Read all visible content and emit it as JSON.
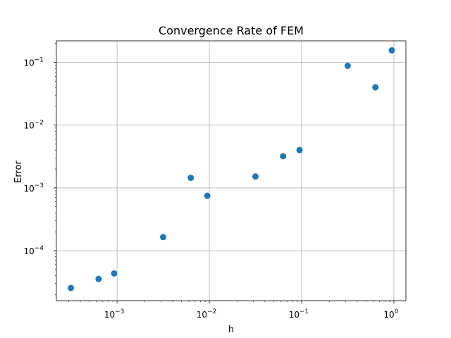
{
  "chart_data": {
    "type": "scatter",
    "title": "Convergence Rate of FEM",
    "xlabel": "h",
    "ylabel": "Error",
    "xscale": "log",
    "yscale": "log",
    "xlim": [
      0.00022,
      1.35
    ],
    "ylim": [
      1.6e-05,
      0.22
    ],
    "grid": true,
    "marker_color": "#1f77b4",
    "x_ticks": [
      {
        "value": 0.001,
        "base": "10",
        "exp": "−3"
      },
      {
        "value": 0.01,
        "base": "10",
        "exp": "−2"
      },
      {
        "value": 0.1,
        "base": "10",
        "exp": "−1"
      },
      {
        "value": 1,
        "base": "10",
        "exp": "0"
      }
    ],
    "y_ticks": [
      {
        "value": 0.0001,
        "base": "10",
        "exp": "−4"
      },
      {
        "value": 0.001,
        "base": "10",
        "exp": "−3"
      },
      {
        "value": 0.01,
        "base": "10",
        "exp": "−2"
      },
      {
        "value": 0.1,
        "base": "10",
        "exp": "−1"
      }
    ],
    "points": [
      {
        "x": 0.000316,
        "y": 2.55e-05
      },
      {
        "x": 0.000631,
        "y": 3.55e-05
      },
      {
        "x": 0.00093,
        "y": 4.35e-05
      },
      {
        "x": 0.00316,
        "y": 0.000165
      },
      {
        "x": 0.0063,
        "y": 0.00145
      },
      {
        "x": 0.0095,
        "y": 0.00075
      },
      {
        "x": 0.0316,
        "y": 0.00152
      },
      {
        "x": 0.063,
        "y": 0.0032
      },
      {
        "x": 0.095,
        "y": 0.004
      },
      {
        "x": 0.316,
        "y": 0.088
      },
      {
        "x": 0.631,
        "y": 0.04
      },
      {
        "x": 0.95,
        "y": 0.155
      }
    ]
  }
}
